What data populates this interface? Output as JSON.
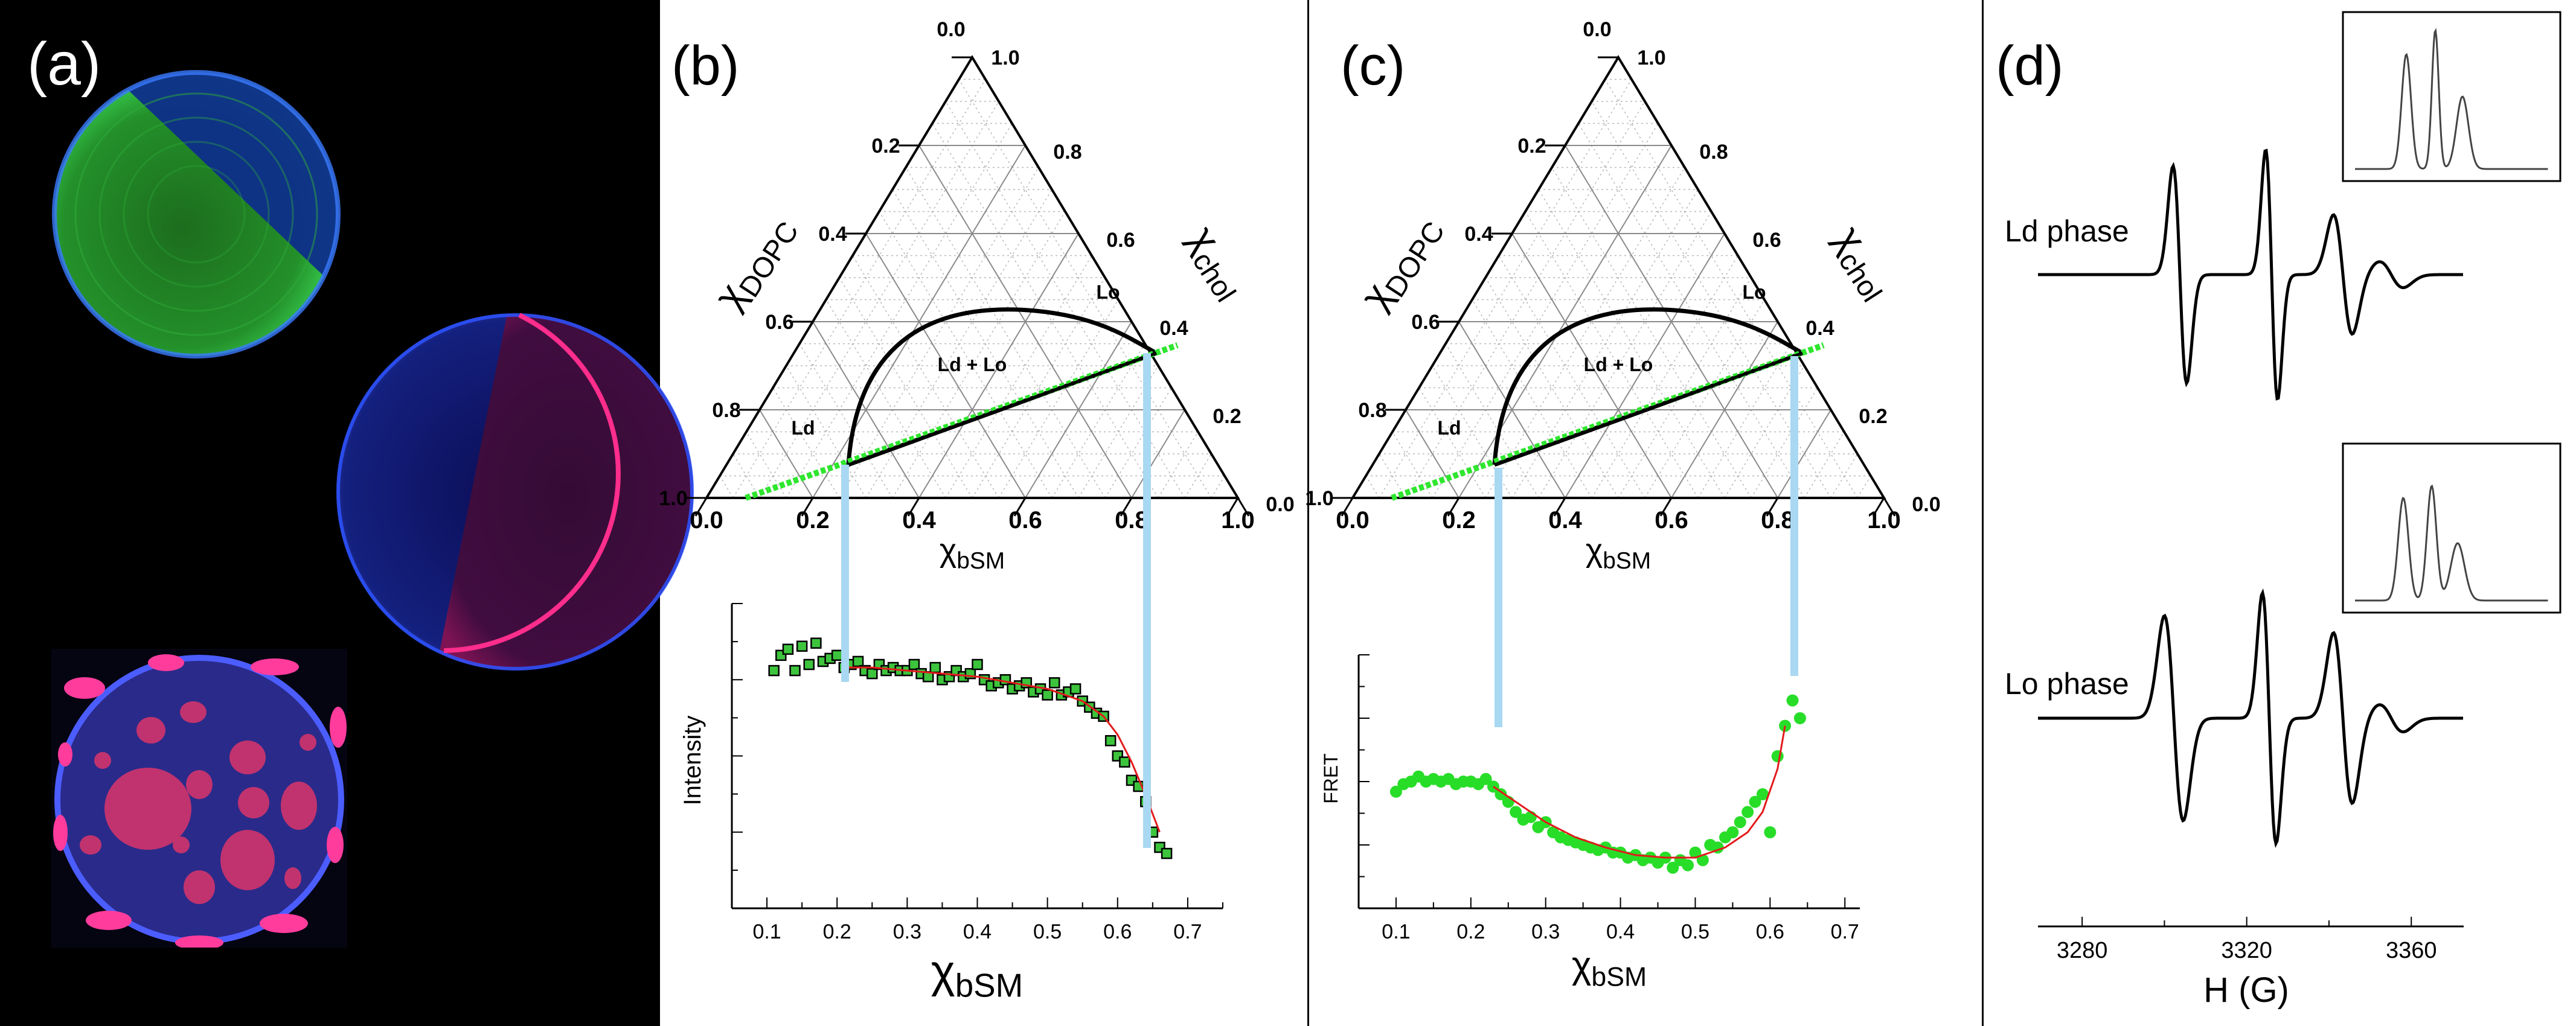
{
  "panels": {
    "a": {
      "label": "(a)"
    },
    "b": {
      "label": "(b)"
    },
    "c": {
      "label": "(c)"
    },
    "d": {
      "label": "(d)"
    }
  },
  "ternary": {
    "left_axis_label": "χDOPC",
    "right_axis_label": "χchol",
    "bottom_axis_label": "χbSM",
    "top_ticks": [
      "0.0",
      "1.0"
    ],
    "left_ticks": [
      "0.2",
      "0.4",
      "0.6",
      "0.8",
      "1.0"
    ],
    "right_ticks": [
      "0.8",
      "0.6",
      "0.4",
      "0.2",
      "0.0"
    ],
    "bottom_ticks": [
      "0.0",
      "0.2",
      "0.4",
      "0.6",
      "0.8",
      "1.0"
    ],
    "region_labels": [
      "Ld",
      "Lo",
      "Ld + Lo"
    ]
  },
  "phase_labels": {
    "ld": "Ld phase",
    "lo": "Lo phase"
  },
  "esr": {
    "xlabel": "H (G)",
    "ticks": [
      "3280",
      "3320",
      "3360"
    ]
  },
  "chart_data": [
    {
      "type": "scatter",
      "panel": "b",
      "xlabel": "χbSM",
      "ylabel": "Intensity",
      "xticks": [
        "0.1",
        "0.2",
        "0.3",
        "0.4",
        "0.5",
        "0.6",
        "0.7"
      ],
      "xlim": [
        0.05,
        0.75
      ],
      "ylim": [
        0,
        1
      ],
      "x": [
        0.11,
        0.12,
        0.13,
        0.14,
        0.15,
        0.16,
        0.17,
        0.18,
        0.19,
        0.2,
        0.21,
        0.22,
        0.23,
        0.24,
        0.25,
        0.26,
        0.27,
        0.28,
        0.29,
        0.3,
        0.31,
        0.32,
        0.33,
        0.34,
        0.35,
        0.36,
        0.37,
        0.38,
        0.39,
        0.4,
        0.41,
        0.42,
        0.43,
        0.44,
        0.45,
        0.46,
        0.47,
        0.48,
        0.49,
        0.5,
        0.51,
        0.52,
        0.53,
        0.54,
        0.55,
        0.56,
        0.57,
        0.58,
        0.59,
        0.6,
        0.61,
        0.62,
        0.63,
        0.64,
        0.65,
        0.66,
        0.67
      ],
      "y": [
        0.78,
        0.83,
        0.85,
        0.78,
        0.86,
        0.8,
        0.87,
        0.81,
        0.82,
        0.83,
        0.79,
        0.8,
        0.81,
        0.78,
        0.77,
        0.8,
        0.78,
        0.79,
        0.78,
        0.78,
        0.8,
        0.77,
        0.76,
        0.79,
        0.75,
        0.76,
        0.78,
        0.76,
        0.77,
        0.8,
        0.75,
        0.73,
        0.74,
        0.75,
        0.72,
        0.73,
        0.74,
        0.71,
        0.72,
        0.7,
        0.74,
        0.7,
        0.71,
        0.72,
        0.68,
        0.66,
        0.64,
        0.63,
        0.55,
        0.5,
        0.48,
        0.42,
        0.4,
        0.35,
        0.25,
        0.2,
        0.18
      ],
      "fit_x": [
        0.21,
        0.25,
        0.3,
        0.35,
        0.4,
        0.45,
        0.5,
        0.55,
        0.58,
        0.6,
        0.62,
        0.64,
        0.66
      ],
      "fit_y": [
        0.79,
        0.79,
        0.78,
        0.77,
        0.76,
        0.74,
        0.72,
        0.68,
        0.63,
        0.57,
        0.48,
        0.37,
        0.25
      ],
      "series_colors": {
        "points": "#3dc43d",
        "fit": "#e31a1c"
      }
    },
    {
      "type": "scatter",
      "panel": "c",
      "xlabel": "χbSM",
      "ylabel": "FRET",
      "xticks": [
        "0.1",
        "0.2",
        "0.3",
        "0.4",
        "0.5",
        "0.6",
        "0.7"
      ],
      "xlim": [
        0.05,
        0.72
      ],
      "ylim": [
        0,
        1
      ],
      "x": [
        0.1,
        0.11,
        0.12,
        0.13,
        0.14,
        0.15,
        0.16,
        0.17,
        0.18,
        0.19,
        0.2,
        0.21,
        0.22,
        0.23,
        0.24,
        0.25,
        0.26,
        0.27,
        0.28,
        0.29,
        0.3,
        0.31,
        0.32,
        0.33,
        0.34,
        0.35,
        0.36,
        0.37,
        0.38,
        0.39,
        0.4,
        0.41,
        0.42,
        0.43,
        0.44,
        0.45,
        0.46,
        0.47,
        0.48,
        0.49,
        0.5,
        0.51,
        0.52,
        0.53,
        0.54,
        0.55,
        0.56,
        0.57,
        0.58,
        0.59,
        0.6,
        0.61,
        0.62,
        0.63,
        0.64
      ],
      "y": [
        0.46,
        0.49,
        0.5,
        0.52,
        0.5,
        0.51,
        0.5,
        0.51,
        0.49,
        0.5,
        0.5,
        0.49,
        0.51,
        0.48,
        0.45,
        0.42,
        0.38,
        0.35,
        0.36,
        0.32,
        0.34,
        0.3,
        0.28,
        0.27,
        0.26,
        0.25,
        0.24,
        0.23,
        0.24,
        0.22,
        0.22,
        0.2,
        0.21,
        0.19,
        0.2,
        0.18,
        0.2,
        0.16,
        0.19,
        0.17,
        0.22,
        0.19,
        0.25,
        0.24,
        0.28,
        0.3,
        0.34,
        0.38,
        0.42,
        0.45,
        0.3,
        0.6,
        0.72,
        0.82,
        0.75
      ],
      "fit_x": [
        0.23,
        0.27,
        0.3,
        0.34,
        0.38,
        0.42,
        0.46,
        0.5,
        0.54,
        0.57,
        0.59,
        0.61,
        0.62
      ],
      "fit_y": [
        0.48,
        0.4,
        0.34,
        0.28,
        0.24,
        0.21,
        0.2,
        0.2,
        0.24,
        0.3,
        0.38,
        0.55,
        0.72
      ],
      "series_colors": {
        "points": "#28dd28",
        "fit": "#e31a1c"
      }
    }
  ]
}
